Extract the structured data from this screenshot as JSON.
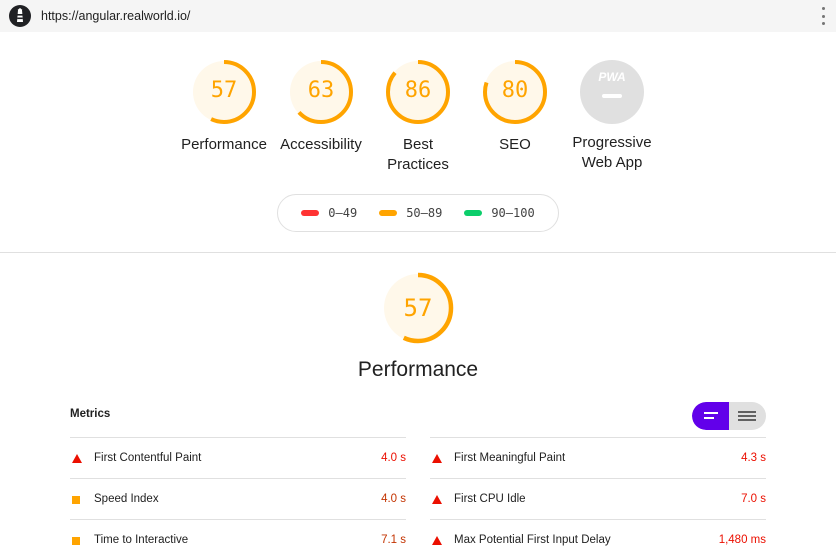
{
  "topbar": {
    "url": "https://angular.realworld.io/",
    "logo_icon": "lighthouse-icon",
    "menu_icon": "kebab-menu-icon"
  },
  "gauges": [
    {
      "score": "57",
      "label": "Performance",
      "color": "#ffa400"
    },
    {
      "score": "63",
      "label": "Accessibility",
      "color": "#ffa400"
    },
    {
      "score": "86",
      "label": "Best Practices",
      "label_line1": "Best",
      "label_line2": "Practices",
      "color": "#ffa400"
    },
    {
      "score": "80",
      "label": "SEO",
      "color": "#ffa400"
    },
    {
      "label_line1": "Progressive",
      "label_line2": "Web App",
      "badge_text": "PWA",
      "color": "#e0e0e0"
    }
  ],
  "legend": [
    {
      "range": "0–49",
      "color": "#ff3333"
    },
    {
      "range": "50–89",
      "color": "#ffa400"
    },
    {
      "range": "90–100",
      "color": "#0cce6b"
    }
  ],
  "category": {
    "score": "57",
    "title": "Performance"
  },
  "metrics": {
    "title": "Metrics",
    "left": [
      {
        "label": "First Contentful Paint",
        "value": "4.0 s",
        "status": "fail"
      },
      {
        "label": "Speed Index",
        "value": "4.0 s",
        "status": "average"
      },
      {
        "label": "Time to Interactive",
        "value": "7.1 s",
        "status": "average"
      }
    ],
    "right": [
      {
        "label": "First Meaningful Paint",
        "value": "4.3 s",
        "status": "fail"
      },
      {
        "label": "First CPU Idle",
        "value": "7.0 s",
        "status": "fail"
      },
      {
        "label": "Max Potential First Input Delay",
        "value": "1,480 ms",
        "status": "fail"
      }
    ]
  },
  "colors": {
    "average": "#ffa400",
    "fail": "#eb0f00",
    "toggle_active": "#6200ea"
  }
}
